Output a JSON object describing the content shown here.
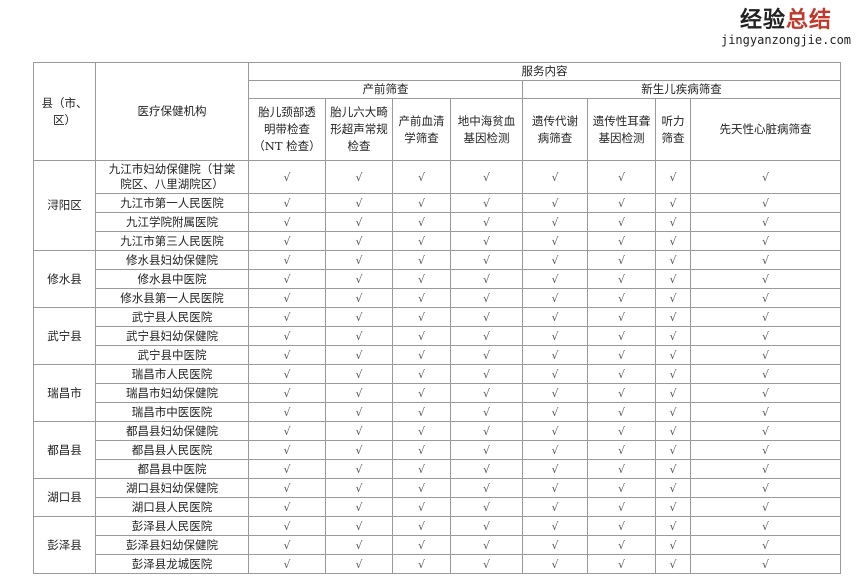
{
  "header": {
    "county": "县（市、区）",
    "institution": "医疗保健机构",
    "service": "服务内容",
    "prenatal": "产前筛查",
    "newborn": "新生儿疾病筛查",
    "columns": [
      "胎儿颈部透明带检查（NT 检查）",
      "胎儿六大畸形超声常规检查",
      "产前血清学筛查",
      "地中海贫血基因检测",
      "遗传代谢病筛查",
      "遗传性耳聋基因检测",
      "听力筛查",
      "先天性心脏病筛查"
    ]
  },
  "check": "√",
  "groups": [
    {
      "county": "浔阳区",
      "institutions": [
        "九江市妇幼保健院（甘棠院区、八里湖院区）",
        "九江市第一人民医院",
        "九江学院附属医院",
        "九江市第三人民医院"
      ]
    },
    {
      "county": "修水县",
      "institutions": [
        "修水县妇幼保健院",
        "修水县中医院",
        "修水县第一人民医院"
      ]
    },
    {
      "county": "武宁县",
      "institutions": [
        "武宁县人民医院",
        "武宁县妇幼保健院",
        "武宁县中医院"
      ]
    },
    {
      "county": "瑞昌市",
      "institutions": [
        "瑞昌市人民医院",
        "瑞昌市妇幼保健院",
        "瑞昌市中医医院"
      ]
    },
    {
      "county": "都昌县",
      "institutions": [
        "都昌县妇幼保健院",
        "都昌县人民医院",
        "都昌县中医院"
      ]
    },
    {
      "county": "湖口县",
      "institutions": [
        "湖口县妇幼保健院",
        "湖口县人民医院"
      ]
    },
    {
      "county": "彭泽县",
      "institutions": [
        "彭泽县人民医院",
        "彭泽县妇幼保健院",
        "彭泽县龙城医院"
      ]
    }
  ],
  "watermark": {
    "cn_a": "经验",
    "cn_b": "总结",
    "en": "jingyanzongjie.com"
  }
}
